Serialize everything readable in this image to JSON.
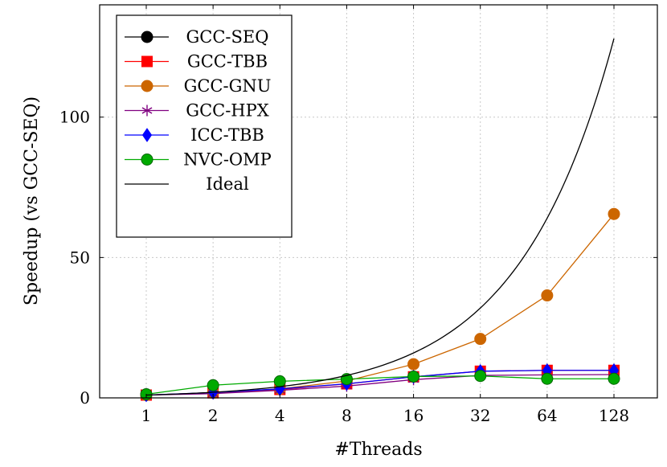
{
  "chart_data": {
    "type": "line",
    "x": [
      "1",
      "2",
      "4",
      "8",
      "16",
      "32",
      "64",
      "128"
    ],
    "xlabel": "#Threads",
    "ylabel": "Speedup (vs GCC-SEQ)",
    "ylim": [
      0,
      140
    ],
    "yticks": [
      "0",
      "50",
      "100"
    ],
    "grid": true,
    "legend_position": "top-left",
    "series": [
      {
        "name": "GCC-SEQ",
        "color": "#000000",
        "marker": "circle",
        "values": [
          1,
          null,
          null,
          null,
          null,
          null,
          null,
          null
        ]
      },
      {
        "name": "GCC-TBB",
        "color": "#ff0000",
        "marker": "square",
        "values": [
          1,
          1.8,
          3,
          5,
          7.5,
          9.5,
          9.8,
          9.8
        ]
      },
      {
        "name": "GCC-GNU",
        "color": "#cc6600",
        "marker": "circle",
        "values": [
          1,
          1.8,
          3.2,
          6,
          12,
          21,
          36.5,
          65.5
        ]
      },
      {
        "name": "GCC-HPX",
        "color": "#800080",
        "marker": "star",
        "values": [
          1,
          1.5,
          2.7,
          4.2,
          6.5,
          8,
          8.2,
          8.3
        ]
      },
      {
        "name": "ICC-TBB",
        "color": "#0000ff",
        "marker": "diamond",
        "values": [
          1,
          1.9,
          3.2,
          5,
          7.5,
          9.5,
          9.8,
          9.8
        ]
      },
      {
        "name": "NVC-OMP",
        "color": "#00aa00",
        "marker": "circle",
        "values": [
          1.3,
          4.5,
          5.9,
          6.7,
          7.6,
          7.8,
          6.8,
          6.8
        ]
      },
      {
        "name": "Ideal",
        "color": "#000000",
        "marker": "none",
        "values": [
          1,
          2,
          4,
          8,
          16,
          32,
          64,
          128
        ]
      }
    ]
  }
}
